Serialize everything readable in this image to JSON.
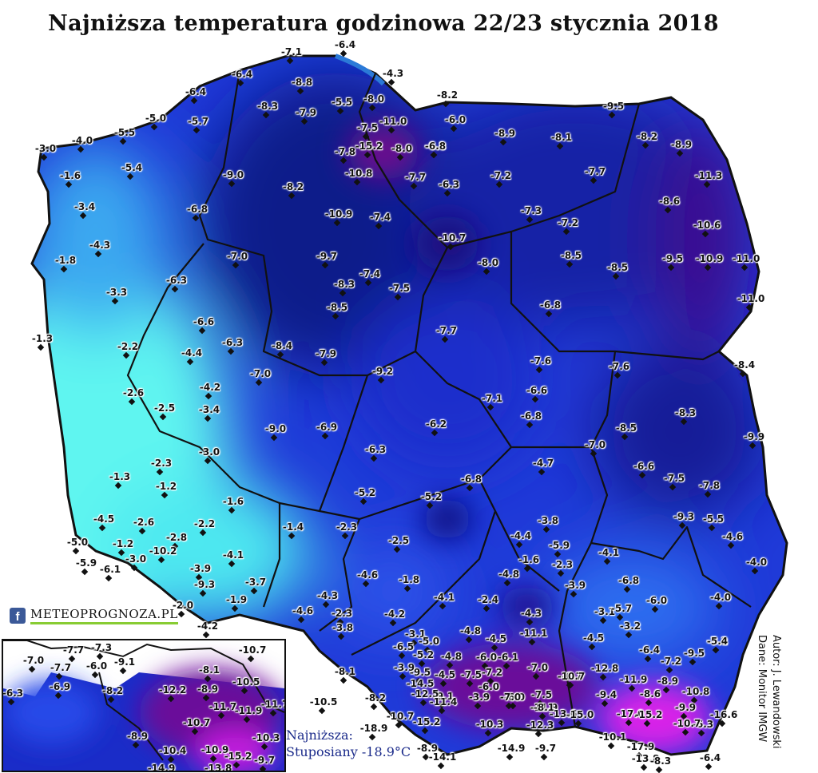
{
  "title": "Najniższa temperatura godzinowa 22/23 stycznia 2018",
  "logo": {
    "brand": "METEOPROGNOZA.PL",
    "facebook_icon": "facebook-icon"
  },
  "minimum_note": {
    "line1": "Najniższa:",
    "line2": "Stuposiany -18.9°C"
  },
  "author": {
    "line1": "Autor: J. Lewandowski",
    "line2": "Dane: Monitor IMGW"
  },
  "colors": {
    "warm": "#5ff5f0",
    "mid": "#1e3cf0",
    "cold": "#0a0a78",
    "coldest": "#7a0aa0",
    "extreme": "#ee22ee"
  },
  "stations": [
    "-7.1",
    "-6.4",
    "-4.3",
    "-6.4",
    "-8.8",
    "-8.3",
    "-7.9",
    "-5.5",
    "-8.0",
    "-8.2",
    "-9.5",
    "-6.4",
    "-5.7",
    "-5.0",
    "-5.5",
    "-11.0",
    "-6.0",
    "-8.9",
    "-8.1",
    "-8.2",
    "-8.9",
    "-7.5",
    "-15.2",
    "-8.0",
    "-6.8",
    "-7.8",
    "-10.8",
    "-6.8",
    "-3.0",
    "-4.0",
    "-1.6",
    "-5.4",
    "-9.0",
    "-7.7",
    "-6.3",
    "-7.2",
    "-7.7",
    "-11.3",
    "-8.2",
    "-3.4",
    "-6.8",
    "-10.9",
    "-7.4",
    "-7.3",
    "-7.2",
    "-8.6",
    "-10.6",
    "-4.3",
    "-10.7",
    "-1.8",
    "-7.0",
    "-9.7",
    "-8.0",
    "-8.5",
    "-8.5",
    "-9.5",
    "-10.9",
    "-11.0",
    "-6.3",
    "-7.4",
    "-3.3",
    "-8.3",
    "-7.5",
    "-8.5",
    "-6.8",
    "-11.0",
    "-1.3",
    "-6.6",
    "-7.7",
    "-6.3",
    "-8.4",
    "-2.2",
    "-4.4",
    "-7.9",
    "-7.0",
    "-9.2",
    "-7.6",
    "-7.6",
    "-8.4",
    "-4.2",
    "-2.6",
    "-6.6",
    "-2.5",
    "-3.4",
    "-7.1",
    "-6.8",
    "-8.3",
    "-9.0",
    "-6.9",
    "-6.2",
    "-8.5",
    "-9.9",
    "-3.0",
    "-6.3",
    "-7.0",
    "-2.3",
    "-4.7",
    "-6.6",
    "-7.5",
    "-7.8",
    "-1.3",
    "-1.2",
    "-6.8",
    "-1.6",
    "-5.2",
    "-5.2",
    "-9.3",
    "-5.5",
    "-4.5",
    "-2.6",
    "-2.2",
    "-1.4",
    "-2.3",
    "-3.8",
    "-4.6",
    "-5.0",
    "-1.2",
    "-2.8",
    "-2.5",
    "-4.4",
    "-5.9",
    "-5.9",
    "-6.1",
    "-3.0",
    "-10.2",
    "-4.1",
    "-1.6",
    "-2.3",
    "-4.1",
    "-4.0",
    "-3.9",
    "-4.6",
    "-1.8",
    "-4.8",
    "-3.9",
    "-6.8",
    "-9.3",
    "-3.7",
    "-2.0",
    "-1.9",
    "-4.1",
    "-2.4",
    "-3.1",
    "-5.7",
    "-6.0",
    "-4.0",
    "-4.2",
    "-4.6",
    "-4.3",
    "-2.3",
    "-4.2",
    "-4.3",
    "-3.1",
    "-3.8",
    "-11.1",
    "-4.5",
    "-3.2",
    "-7.2",
    "-5.0",
    "-4.8",
    "-4.5",
    "-6.4",
    "-7.2",
    "-9.5",
    "-5.4",
    "-6.5",
    "-5.2",
    "-4.8",
    "-6.0",
    "-6.1",
    "-7.0",
    "-6.7",
    "-12.8",
    "-11.9",
    "-8.9",
    "-8.1",
    "-9.5",
    "-4.5",
    "-7.5",
    "-7.2",
    "-6.0",
    "-7.5",
    "-10.7",
    "-9.4",
    "-8.6",
    "-10.8",
    "-10.5",
    "-14.5",
    "-3.9",
    "-9.1",
    "-3.9",
    "-6.0",
    "-11.9",
    "-9.9",
    "-12.5",
    "-11.4",
    "-7.0",
    "-8.1",
    "-13.6",
    "-17.0",
    "-15.2",
    "-6.3",
    "-8.2",
    "-10.7",
    "-15.2",
    "-10.3",
    "-12.3",
    "-15.0",
    "-10.7",
    "-16.6",
    "-18.9",
    "-8.9",
    "-14.9",
    "-9.7",
    "-10.1",
    "-17.9",
    "-14.1",
    "-13.8",
    "-8.3",
    "-6.4",
    "-15.7"
  ],
  "inset_stations": [
    "-7.7",
    "-7.3",
    "-10.7",
    "-7.0",
    "-7.7",
    "-6.0",
    "-9.1",
    "-8.1",
    "-6.3",
    "-6.9",
    "-8.2",
    "-12.2",
    "-8.9",
    "-10.5",
    "-11.7",
    "-11.9",
    "-11.7",
    "-10.7",
    "-8.9",
    "-10.4",
    "-10.9",
    "-10.3",
    "-15.2",
    "-14.9",
    "-13.8",
    "-9.7"
  ]
}
